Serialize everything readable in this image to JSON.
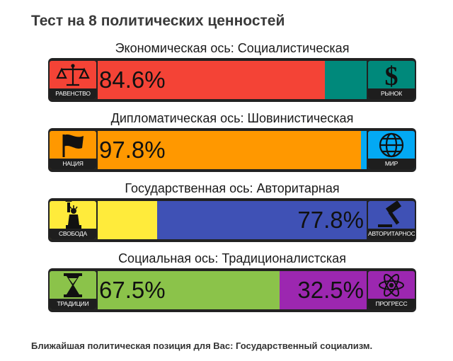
{
  "title": "Тест на 8 политических ценностей",
  "axes": [
    {
      "label": "Экономическая ось: Социалистическая",
      "left": {
        "name": "РАВЕНСТВО",
        "icon": "scales-icon",
        "value": 84.6,
        "value_label": "84.6%",
        "color": "#f44336"
      },
      "right": {
        "name": "РЫНОК",
        "icon": "dollar-icon",
        "value": 15.4,
        "value_label": "",
        "color": "#00897b"
      }
    },
    {
      "label": "Дипломатическая ось: Шовинистическая",
      "left": {
        "name": "НАЦИЯ",
        "icon": "flag-icon",
        "value": 97.8,
        "value_label": "97.8%",
        "color": "#ff9800"
      },
      "right": {
        "name": "МИР",
        "icon": "globe-icon",
        "value": 2.2,
        "value_label": "",
        "color": "#03a9f4"
      }
    },
    {
      "label": "Государственная ось: Авторитарная",
      "left": {
        "name": "СВОБОДА",
        "icon": "statue-of-liberty-icon",
        "value": 22.2,
        "value_label": "",
        "color": "#ffeb3b"
      },
      "right": {
        "name": "АВТОРИТАРНОСТЬ",
        "icon": "gavel-icon",
        "value": 77.8,
        "value_label": "77.8%",
        "color": "#3f51b5"
      }
    },
    {
      "label": "Социальная ось: Традиционалистская",
      "left": {
        "name": "ТРАДИЦИИ",
        "icon": "hourglass-icon",
        "value": 67.5,
        "value_label": "67.5%",
        "color": "#8bc34a"
      },
      "right": {
        "name": "ПРОГРЕСС",
        "icon": "atom-icon",
        "value": 32.5,
        "value_label": "32.5%",
        "color": "#9c27b0"
      }
    }
  ],
  "footer": "Ближайшая политическая позиция для Вас: Государственный социализм."
}
